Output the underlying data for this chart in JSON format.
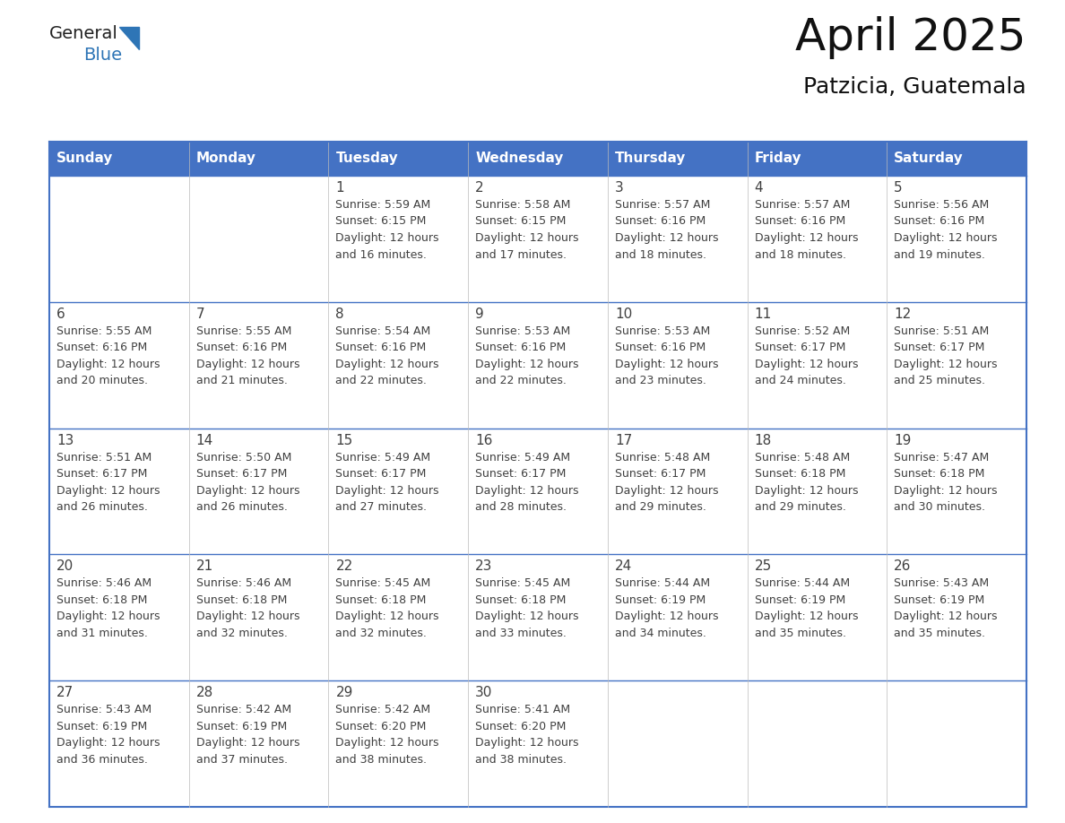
{
  "title": "April 2025",
  "subtitle": "Patzicia, Guatemala",
  "header_bg_color": "#4472C4",
  "header_text_color": "#FFFFFF",
  "border_color": "#4472C4",
  "row_border_color": "#4472C4",
  "text_color": "#404040",
  "day_headers": [
    "Sunday",
    "Monday",
    "Tuesday",
    "Wednesday",
    "Thursday",
    "Friday",
    "Saturday"
  ],
  "weeks": [
    [
      {
        "day": "",
        "info": ""
      },
      {
        "day": "",
        "info": ""
      },
      {
        "day": "1",
        "info": "Sunrise: 5:59 AM\nSunset: 6:15 PM\nDaylight: 12 hours\nand 16 minutes."
      },
      {
        "day": "2",
        "info": "Sunrise: 5:58 AM\nSunset: 6:15 PM\nDaylight: 12 hours\nand 17 minutes."
      },
      {
        "day": "3",
        "info": "Sunrise: 5:57 AM\nSunset: 6:16 PM\nDaylight: 12 hours\nand 18 minutes."
      },
      {
        "day": "4",
        "info": "Sunrise: 5:57 AM\nSunset: 6:16 PM\nDaylight: 12 hours\nand 18 minutes."
      },
      {
        "day": "5",
        "info": "Sunrise: 5:56 AM\nSunset: 6:16 PM\nDaylight: 12 hours\nand 19 minutes."
      }
    ],
    [
      {
        "day": "6",
        "info": "Sunrise: 5:55 AM\nSunset: 6:16 PM\nDaylight: 12 hours\nand 20 minutes."
      },
      {
        "day": "7",
        "info": "Sunrise: 5:55 AM\nSunset: 6:16 PM\nDaylight: 12 hours\nand 21 minutes."
      },
      {
        "day": "8",
        "info": "Sunrise: 5:54 AM\nSunset: 6:16 PM\nDaylight: 12 hours\nand 22 minutes."
      },
      {
        "day": "9",
        "info": "Sunrise: 5:53 AM\nSunset: 6:16 PM\nDaylight: 12 hours\nand 22 minutes."
      },
      {
        "day": "10",
        "info": "Sunrise: 5:53 AM\nSunset: 6:16 PM\nDaylight: 12 hours\nand 23 minutes."
      },
      {
        "day": "11",
        "info": "Sunrise: 5:52 AM\nSunset: 6:17 PM\nDaylight: 12 hours\nand 24 minutes."
      },
      {
        "day": "12",
        "info": "Sunrise: 5:51 AM\nSunset: 6:17 PM\nDaylight: 12 hours\nand 25 minutes."
      }
    ],
    [
      {
        "day": "13",
        "info": "Sunrise: 5:51 AM\nSunset: 6:17 PM\nDaylight: 12 hours\nand 26 minutes."
      },
      {
        "day": "14",
        "info": "Sunrise: 5:50 AM\nSunset: 6:17 PM\nDaylight: 12 hours\nand 26 minutes."
      },
      {
        "day": "15",
        "info": "Sunrise: 5:49 AM\nSunset: 6:17 PM\nDaylight: 12 hours\nand 27 minutes."
      },
      {
        "day": "16",
        "info": "Sunrise: 5:49 AM\nSunset: 6:17 PM\nDaylight: 12 hours\nand 28 minutes."
      },
      {
        "day": "17",
        "info": "Sunrise: 5:48 AM\nSunset: 6:17 PM\nDaylight: 12 hours\nand 29 minutes."
      },
      {
        "day": "18",
        "info": "Sunrise: 5:48 AM\nSunset: 6:18 PM\nDaylight: 12 hours\nand 29 minutes."
      },
      {
        "day": "19",
        "info": "Sunrise: 5:47 AM\nSunset: 6:18 PM\nDaylight: 12 hours\nand 30 minutes."
      }
    ],
    [
      {
        "day": "20",
        "info": "Sunrise: 5:46 AM\nSunset: 6:18 PM\nDaylight: 12 hours\nand 31 minutes."
      },
      {
        "day": "21",
        "info": "Sunrise: 5:46 AM\nSunset: 6:18 PM\nDaylight: 12 hours\nand 32 minutes."
      },
      {
        "day": "22",
        "info": "Sunrise: 5:45 AM\nSunset: 6:18 PM\nDaylight: 12 hours\nand 32 minutes."
      },
      {
        "day": "23",
        "info": "Sunrise: 5:45 AM\nSunset: 6:18 PM\nDaylight: 12 hours\nand 33 minutes."
      },
      {
        "day": "24",
        "info": "Sunrise: 5:44 AM\nSunset: 6:19 PM\nDaylight: 12 hours\nand 34 minutes."
      },
      {
        "day": "25",
        "info": "Sunrise: 5:44 AM\nSunset: 6:19 PM\nDaylight: 12 hours\nand 35 minutes."
      },
      {
        "day": "26",
        "info": "Sunrise: 5:43 AM\nSunset: 6:19 PM\nDaylight: 12 hours\nand 35 minutes."
      }
    ],
    [
      {
        "day": "27",
        "info": "Sunrise: 5:43 AM\nSunset: 6:19 PM\nDaylight: 12 hours\nand 36 minutes."
      },
      {
        "day": "28",
        "info": "Sunrise: 5:42 AM\nSunset: 6:19 PM\nDaylight: 12 hours\nand 37 minutes."
      },
      {
        "day": "29",
        "info": "Sunrise: 5:42 AM\nSunset: 6:20 PM\nDaylight: 12 hours\nand 38 minutes."
      },
      {
        "day": "30",
        "info": "Sunrise: 5:41 AM\nSunset: 6:20 PM\nDaylight: 12 hours\nand 38 minutes."
      },
      {
        "day": "",
        "info": ""
      },
      {
        "day": "",
        "info": ""
      },
      {
        "day": "",
        "info": ""
      }
    ]
  ],
  "logo_general_color": "#222222",
  "logo_blue_color": "#2E75B6",
  "logo_triangle_color": "#2E75B6",
  "title_fontsize": 36,
  "subtitle_fontsize": 18,
  "header_fontsize": 11,
  "day_num_fontsize": 11,
  "info_fontsize": 9
}
